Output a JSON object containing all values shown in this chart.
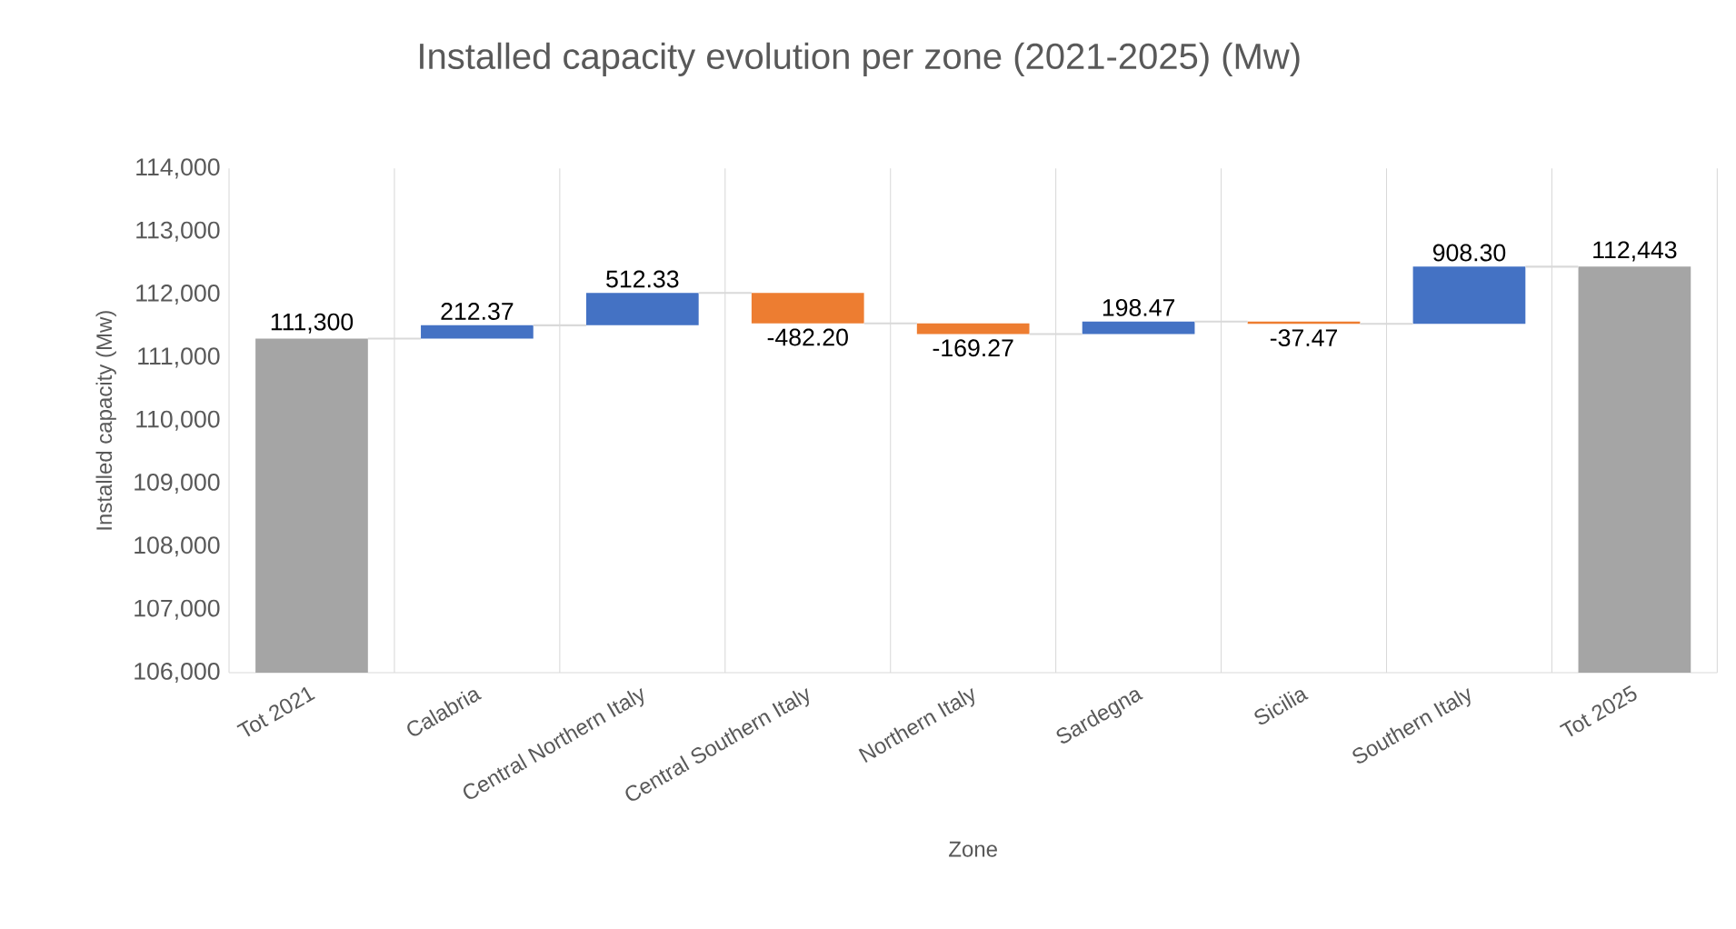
{
  "chart_data": {
    "type": "bar",
    "title": "Installed capacity evolution per zone (2021-2025) (Mw)",
    "xlabel": "Zone",
    "ylabel": "Installed capacity (Mw)",
    "categories": [
      "Tot 2021",
      "Calabria",
      "Central Northern Italy",
      "Central Southern Italy",
      "Northern Italy",
      "Sardegna",
      "Sicilia",
      "Southern Italy",
      "Tot 2025"
    ],
    "values": [
      111300,
      212.37,
      512.33,
      -482.2,
      -169.27,
      198.47,
      -37.47,
      908.3,
      112443
    ],
    "base": [
      null,
      111300,
      111512.37,
      112024.7,
      111542.5,
      111373.23,
      111571.7,
      111534.23,
      null
    ],
    "colors": [
      "#a5a5a5",
      "#4472c4",
      "#4472c4",
      "#ed7d31",
      "#ed7d31",
      "#4472c4",
      "#ed7d31",
      "#4472c4",
      "#a5a5a5"
    ],
    "value_labels": [
      "111,300",
      "212.37",
      "512.33",
      "-482.20",
      "-169.27",
      "198.47",
      "-37.47",
      "908.30",
      "112,443"
    ],
    "ylim": [
      106000,
      114000
    ],
    "yticks": [
      {
        "value": 106000,
        "label": "106,000"
      },
      {
        "value": 107000,
        "label": "107,000"
      },
      {
        "value": 108000,
        "label": "108,000"
      },
      {
        "value": 109000,
        "label": "109,000"
      },
      {
        "value": 110000,
        "label": "110,000"
      },
      {
        "value": 111000,
        "label": "111,000"
      },
      {
        "value": 112000,
        "label": "112,000"
      },
      {
        "value": 113000,
        "label": "113,000"
      },
      {
        "value": 114000,
        "label": "114,000"
      }
    ],
    "grid": "x"
  }
}
